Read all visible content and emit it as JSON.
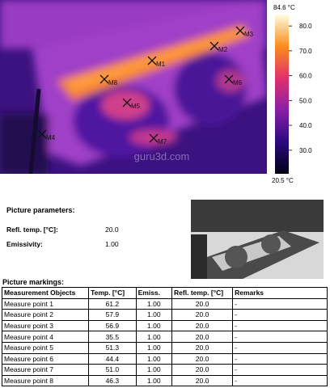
{
  "thermal": {
    "watermark": "guru3d.com",
    "markers": [
      "M1",
      "M2",
      "M3",
      "M4",
      "M5",
      "M6",
      "M7",
      "M8"
    ],
    "scale": {
      "max": {
        "value": 84.6,
        "label": "84.6 °C"
      },
      "min": {
        "value": 20.5,
        "label": "20.5 °C"
      },
      "ticks": [
        {
          "value": 80,
          "label": "80.0"
        },
        {
          "value": 70,
          "label": "70.0"
        },
        {
          "value": 60,
          "label": "60.0"
        },
        {
          "value": 50,
          "label": "50.0"
        },
        {
          "value": 40,
          "label": "40.0"
        },
        {
          "value": 30,
          "label": "30.0"
        }
      ]
    }
  },
  "parameters": {
    "title": "Picture parameters:",
    "rows": [
      [
        "Refl. temp. [°C]:",
        "20.0"
      ],
      [
        "Emissivity:",
        "1.00"
      ]
    ]
  },
  "markings": {
    "title": "Picture markings:",
    "header": [
      "Measurement Objects",
      "Temp. [°C]",
      "Emiss.",
      "Refl. temp. [°C]",
      "Remarks"
    ],
    "rows": [
      [
        "Measure point 1",
        "61.2",
        "1.00",
        "20.0",
        "-"
      ],
      [
        "Measure point 2",
        "57.9",
        "1.00",
        "20.0",
        "-"
      ],
      [
        "Measure point 3",
        "56.9",
        "1.00",
        "20.0",
        "-"
      ],
      [
        "Measure point 4",
        "35.5",
        "1.00",
        "20.0",
        "-"
      ],
      [
        "Measure point 5",
        "51.3",
        "1.00",
        "20.0",
        "-"
      ],
      [
        "Measure point 6",
        "44.4",
        "1.00",
        "20.0",
        "-"
      ],
      [
        "Measure point 7",
        "51.0",
        "1.00",
        "20.0",
        "-"
      ],
      [
        "Measure point 8",
        "46.3",
        "1.00",
        "20.0",
        "-"
      ]
    ]
  }
}
